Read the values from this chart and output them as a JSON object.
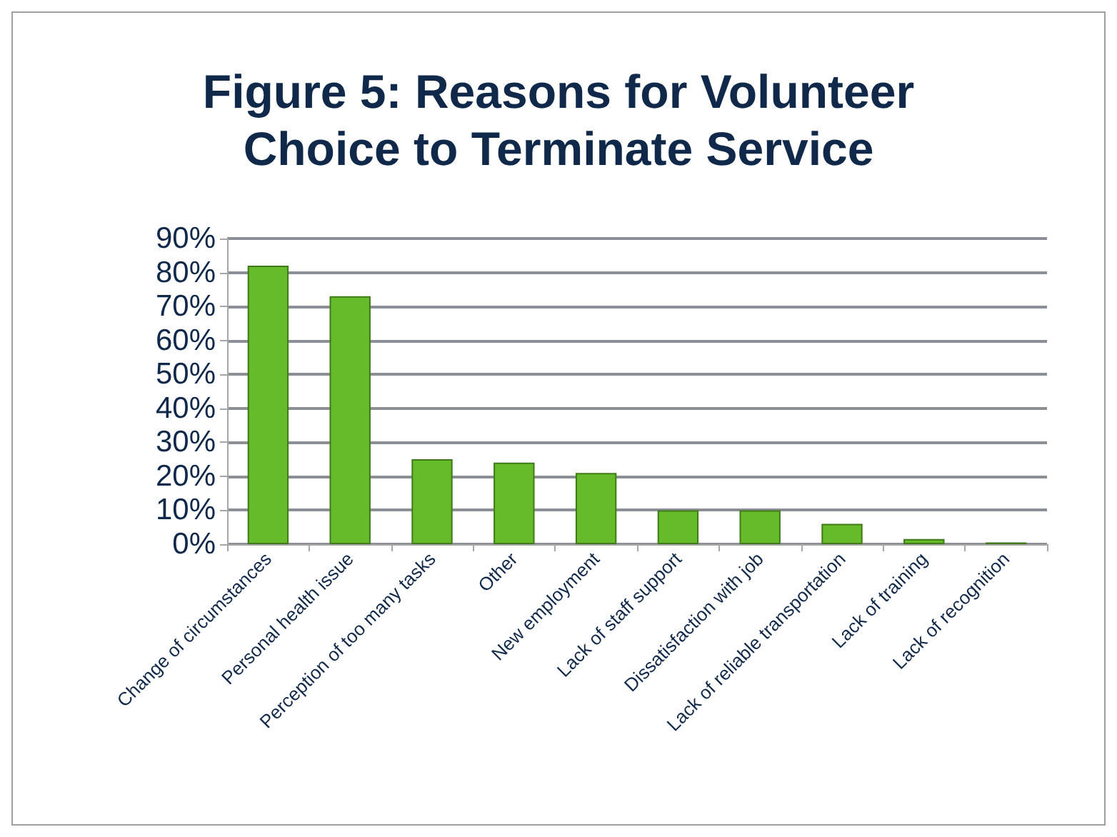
{
  "chart_data": {
    "type": "bar",
    "title": "Figure 5: Reasons for Volunteer Choice to Terminate Service",
    "categories": [
      "Change of circumstances",
      "Personal health issue",
      "Perception of too many tasks",
      "Other",
      "New employment",
      "Lack of staff support",
      "Dissatisfaction with job",
      "Lack of reliable transportation",
      "Lack of training",
      "Lack of recognition"
    ],
    "values": [
      0.82,
      0.73,
      0.25,
      0.24,
      0.21,
      0.1,
      0.1,
      0.06,
      0.015,
      0.005
    ],
    "color": "#66bb2a",
    "ylim": [
      0,
      0.9
    ],
    "yticks": [
      {
        "value": 0,
        "label": "0%"
      },
      {
        "value": 0.1,
        "label": "10%"
      },
      {
        "value": 0.2,
        "label": "20%"
      },
      {
        "value": 0.3,
        "label": "30%"
      },
      {
        "value": 0.4,
        "label": "40%"
      },
      {
        "value": 0.5,
        "label": "50%"
      },
      {
        "value": 0.6,
        "label": "60%"
      },
      {
        "value": 0.7,
        "label": "70%"
      },
      {
        "value": 0.8,
        "label": "80%"
      },
      {
        "value": 0.9,
        "label": "90%"
      }
    ],
    "grid": true
  }
}
